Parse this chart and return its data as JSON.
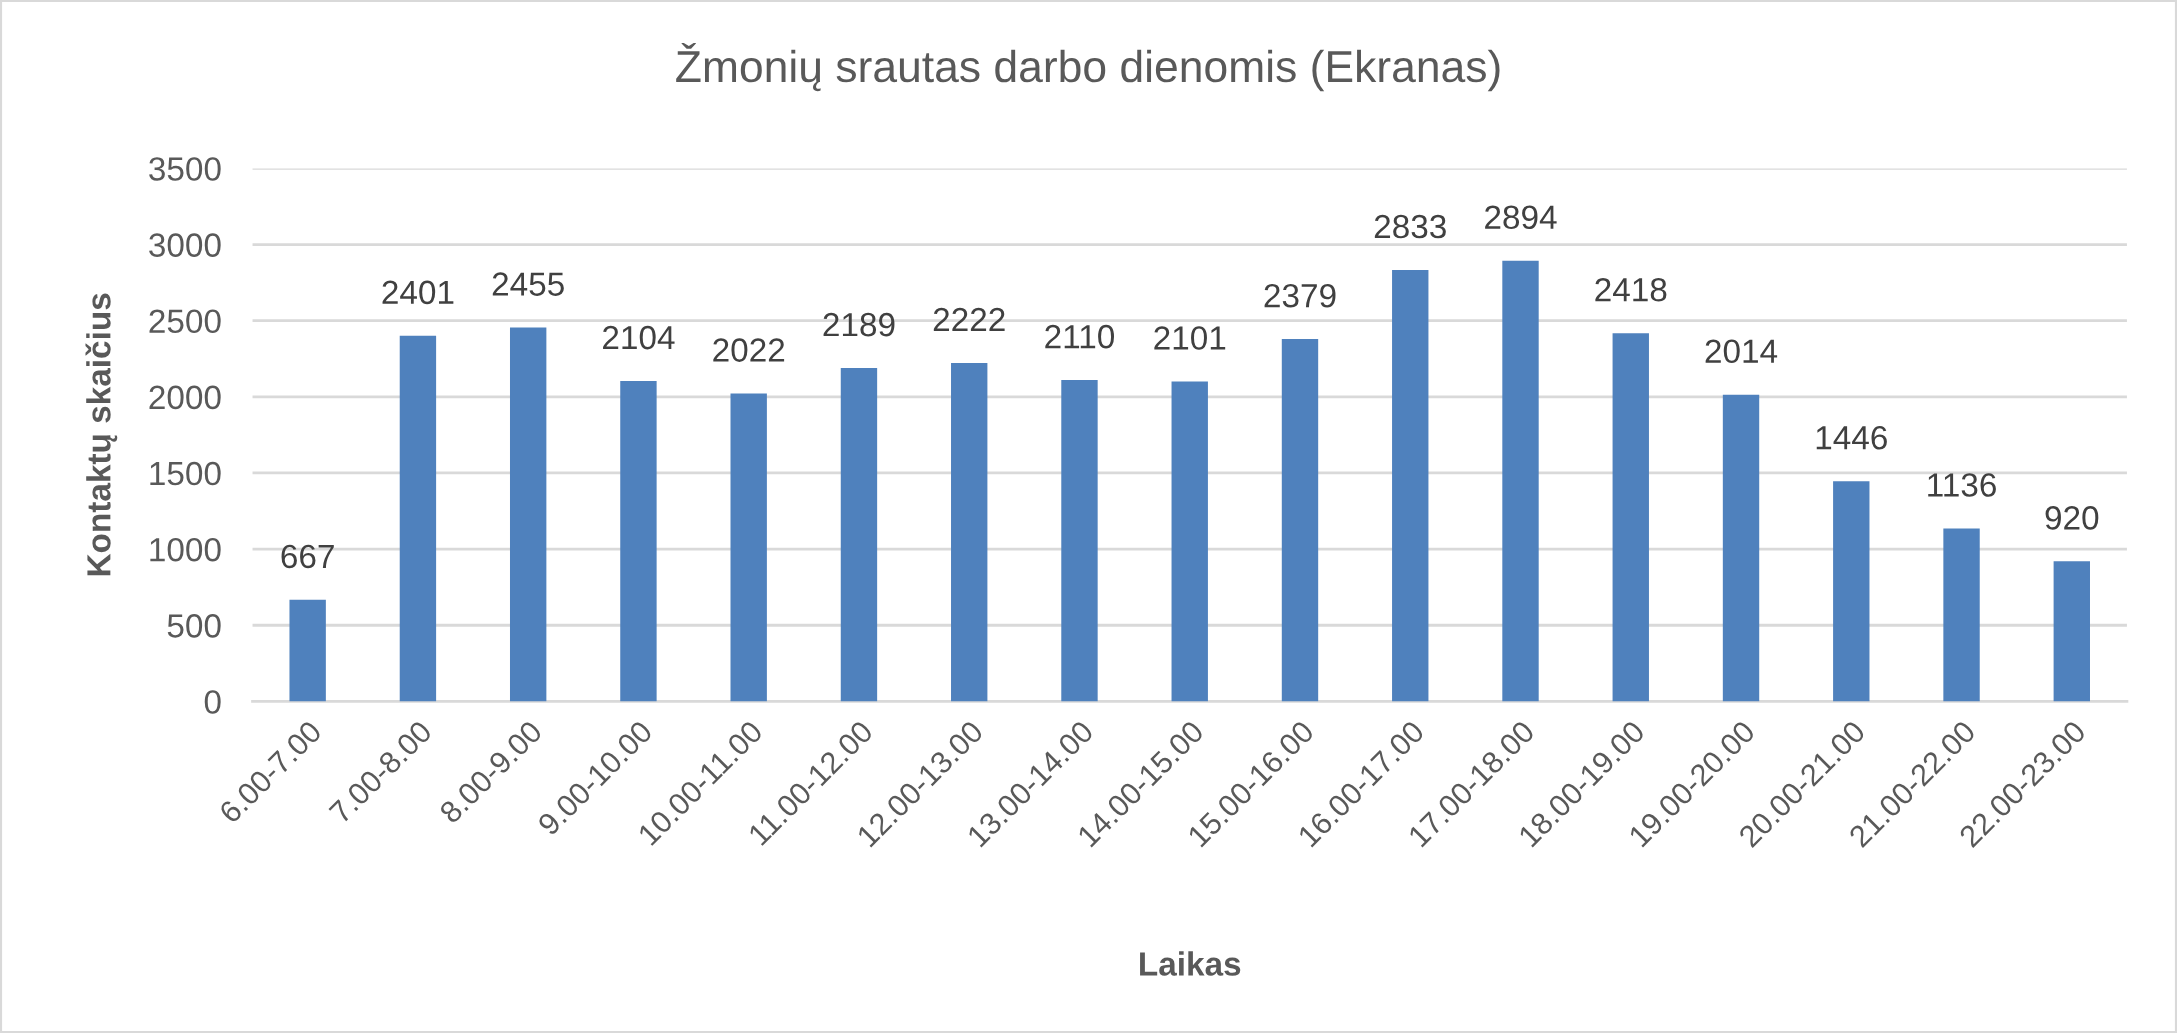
{
  "chart_data": {
    "type": "bar",
    "title": "Žmonių srautas darbo dienomis (Ekranas)",
    "xlabel": "Laikas",
    "ylabel": "Kontaktų skaičius",
    "categories": [
      "6.00-7.00",
      "7.00-8.00",
      "8.00-9.00",
      "9.00-10.00",
      "10.00-11.00",
      "11.00-12.00",
      "12.00-13.00",
      "13.00-14.00",
      "14.00-15.00",
      "15.00-16.00",
      "16.00-17.00",
      "17.00-18.00",
      "18.00-19.00",
      "19.00-20.00",
      "20.00-21.00",
      "21.00-22.00",
      "22.00-23.00"
    ],
    "values": [
      667,
      2401,
      2455,
      2104,
      2022,
      2189,
      2222,
      2110,
      2101,
      2379,
      2833,
      2894,
      2418,
      2014,
      1446,
      1136,
      920
    ],
    "color": "#4f81bd",
    "ylim": [
      0,
      3500
    ],
    "yticks": [
      0,
      500,
      1000,
      1500,
      2000,
      2500,
      3000,
      3500
    ],
    "grid": "y",
    "data_labels": true
  }
}
